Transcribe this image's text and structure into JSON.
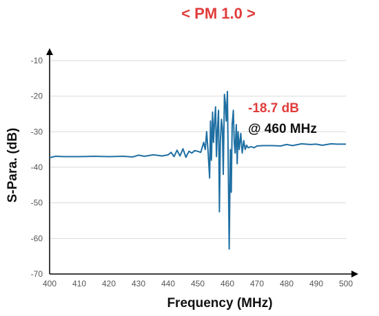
{
  "chart_data": {
    "type": "line",
    "title": "< PM 1.0 >",
    "xlabel": "Frequency (MHz)",
    "ylabel": "S-Para. (dB)",
    "xlim": [
      400,
      500
    ],
    "ylim": [
      -70,
      -10
    ],
    "x_ticks": [
      "400",
      "410",
      "420",
      "430",
      "440",
      "450",
      "460",
      "470",
      "480",
      "490",
      "500"
    ],
    "y_ticks": [
      "-10",
      "-20",
      "-30",
      "-40",
      "-50",
      "-60",
      "-70"
    ],
    "grid": "horizontal",
    "legend": "none",
    "series": [
      {
        "color": "#1f6fa3",
        "x": [
          400,
          402,
          405,
          410,
          415,
          420,
          425,
          428,
          430,
          432,
          435,
          438,
          440,
          441,
          442,
          443,
          444,
          445,
          446,
          447,
          448,
          449,
          450,
          451,
          452,
          452.5,
          453,
          453.5,
          454,
          454.3,
          454.6,
          455,
          455.3,
          455.6,
          456,
          456.3,
          456.6,
          457,
          457.3,
          457.6,
          458,
          458.3,
          458.6,
          459,
          459.3,
          459.6,
          460,
          460.3,
          460.6,
          461,
          461.3,
          461.6,
          462,
          462.3,
          462.6,
          463,
          463.3,
          463.6,
          464,
          464.5,
          465,
          465.5,
          466,
          466.5,
          467,
          468,
          469,
          470,
          472,
          475,
          478,
          480,
          482,
          485,
          488,
          490,
          492,
          495,
          497,
          500
        ],
        "y": [
          -37.3,
          -36.9,
          -37.0,
          -37.0,
          -36.9,
          -37.0,
          -36.9,
          -37.1,
          -36.6,
          -36.9,
          -36.5,
          -36.8,
          -36.5,
          -35.8,
          -37.0,
          -35.2,
          -36.8,
          -34.8,
          -37.2,
          -35.5,
          -36.0,
          -35.3,
          -35.5,
          -35.8,
          -33.0,
          -35.0,
          -30.0,
          -36.0,
          -43.0,
          -27.0,
          -38.0,
          -24.5,
          -33.0,
          -28.0,
          -23.0,
          -37.0,
          -30.0,
          -24.0,
          -52.5,
          -33.0,
          -26.5,
          -29.0,
          -42.0,
          -19.5,
          -22.0,
          -27.0,
          -18.7,
          -40.0,
          -63.0,
          -35.0,
          -47.0,
          -28.0,
          -24.0,
          -33.0,
          -36.0,
          -28.0,
          -39.0,
          -30.0,
          -35.0,
          -30.5,
          -36.0,
          -32.5,
          -35.0,
          -33.8,
          -34.5,
          -34.2,
          -34.5,
          -34.0,
          -33.9,
          -33.9,
          -34.0,
          -33.6,
          -33.9,
          -33.4,
          -33.6,
          -33.5,
          -33.8,
          -33.4,
          -33.5,
          -33.5
        ]
      }
    ],
    "annotation": {
      "value": "-18.7 dB",
      "location": "@ 460 MHz",
      "value_color": "#e03c3c",
      "location_color": "#111111"
    },
    "title_color": "#e03c3c"
  }
}
